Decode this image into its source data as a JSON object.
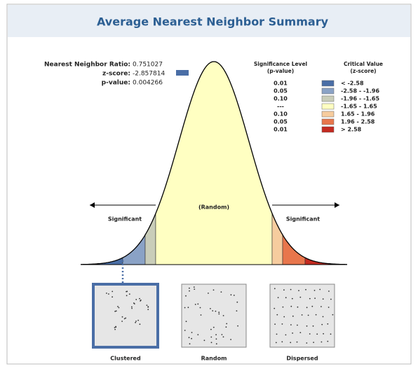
{
  "header": {
    "title": "Average Nearest Neighbor Summary"
  },
  "stats": [
    {
      "label": "Nearest Neighbor Ratio:",
      "value": "0.751027"
    },
    {
      "label": "z-score:",
      "value": "-2.857814"
    },
    {
      "label": "p-value:",
      "value": "0.004266"
    }
  ],
  "legend": {
    "headers": [
      [
        "Significance Level",
        "(p-value)"
      ],
      [
        "Critical Value",
        "(z-score)"
      ]
    ],
    "rows": [
      {
        "p": "0.01",
        "z": "< -2.58",
        "color": "#4a6ea6"
      },
      {
        "p": "0.05",
        "z": "-2.58 - -1.96",
        "color": "#8aa2c6"
      },
      {
        "p": "0.10",
        "z": "-1.96 - -1.65",
        "color": "#c9cdb9"
      },
      {
        "p": "---",
        "z": "-1.65 - 1.65",
        "color": "#ffffc2"
      },
      {
        "p": "0.10",
        "z": "1.65 - 1.96",
        "color": "#f6cc9e"
      },
      {
        "p": "0.05",
        "z": "1.96 - 2.58",
        "color": "#e8764c"
      },
      {
        "p": "0.01",
        "z": "> 2.58",
        "color": "#c42a20"
      }
    ]
  },
  "curve_labels": {
    "left": "Significant",
    "middle": "(Random)",
    "right": "Significant"
  },
  "patterns": [
    "Clustered",
    "Random",
    "Dispersed"
  ]
}
